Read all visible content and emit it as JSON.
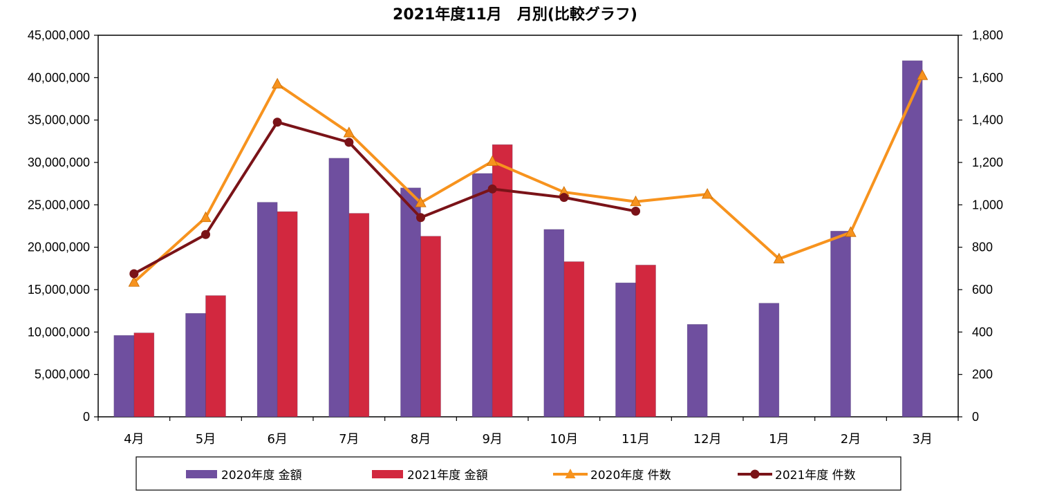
{
  "chart_data": {
    "type": "bar",
    "title": "2021年度11月　月別(比較グラフ)",
    "categories": [
      "4月",
      "5月",
      "6月",
      "7月",
      "8月",
      "9月",
      "10月",
      "11月",
      "12月",
      "1月",
      "2月",
      "3月"
    ],
    "ylim": [
      0,
      45000000
    ],
    "y2lim": [
      0,
      1800
    ],
    "yticks": [
      "0",
      "5,000,000",
      "10,000,000",
      "15,000,000",
      "20,000,000",
      "25,000,000",
      "30,000,000",
      "35,000,000",
      "40,000,000",
      "45,000,000"
    ],
    "y2ticks": [
      "0",
      "200",
      "400",
      "600",
      "800",
      "1,000",
      "1,200",
      "1,400",
      "1,600",
      "1,800"
    ],
    "grid": false,
    "legend_position": "bottom",
    "series": [
      {
        "name": "2020年度 金額",
        "kind": "bar",
        "axis": "left",
        "color": "#6F4F9F",
        "values": [
          9600000,
          12200000,
          25300000,
          30500000,
          27000000,
          28700000,
          22100000,
          15800000,
          10900000,
          13400000,
          21900000,
          42000000
        ]
      },
      {
        "name": "2021年度 金額",
        "kind": "bar",
        "axis": "left",
        "color": "#D2283F",
        "values": [
          9900000,
          14300000,
          24200000,
          24000000,
          21300000,
          32100000,
          18300000,
          17900000,
          null,
          null,
          null,
          null
        ]
      },
      {
        "name": "2020年度 件数",
        "kind": "line",
        "marker": "triangle",
        "axis": "right",
        "color": "#F7931E",
        "values": [
          635,
          940,
          1570,
          1340,
          1010,
          1205,
          1060,
          1015,
          1050,
          745,
          870,
          1610
        ]
      },
      {
        "name": "2021年度 件数",
        "kind": "line",
        "marker": "circle",
        "axis": "right",
        "color": "#7A1318",
        "values": [
          675,
          860,
          1390,
          1295,
          940,
          1075,
          1035,
          970,
          null,
          null,
          null,
          null
        ]
      }
    ]
  }
}
